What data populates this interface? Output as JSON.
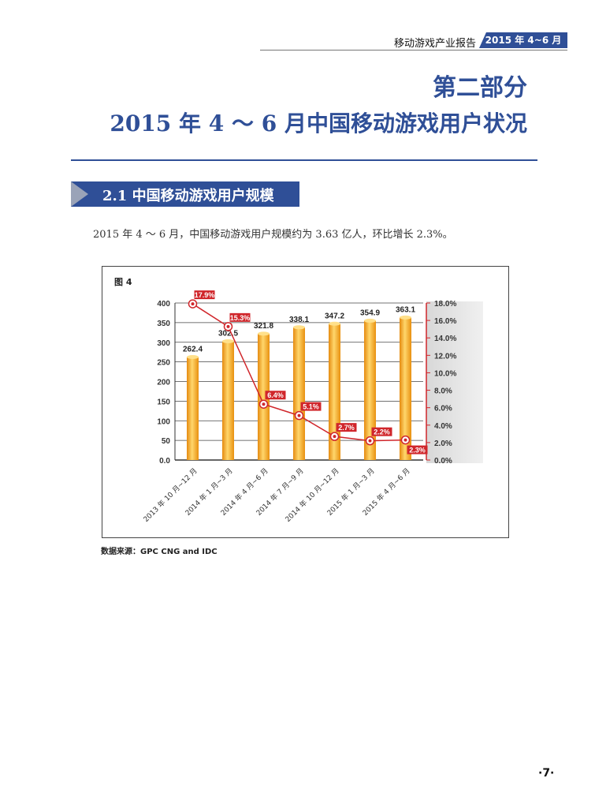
{
  "header": {
    "report_title": "移动游戏产业报告",
    "period_tag": "2015 年 4~6 月"
  },
  "section": {
    "title": "第二部分",
    "subtitle": "2015 年 4 ～ 6 月中国移动游戏用户状况"
  },
  "subsection": {
    "title": "2.1 中国移动游戏用户规模"
  },
  "paragraph": "2015 年 4 ～ 6 月，中国移动游戏用户规模约为 3.63 亿人，环比增长 2.3%。",
  "figure": {
    "label": "图 4",
    "source": "数据来源：GPC CNG and IDC"
  },
  "chart_data": {
    "type": "bar",
    "categories": [
      "2013 年 10 月~12 月",
      "2014 年 1 月~3 月",
      "2014 年 4 月~6 月",
      "2014 年 7 月~9 月",
      "2014 年 10 月~12 月",
      "2015 年 1 月~3 月",
      "2015 年 4 月~6 月"
    ],
    "series": [
      {
        "values": [
          262.4,
          302.5,
          321.8,
          338.1,
          347.2,
          354.9,
          363.1
        ],
        "axis": "left",
        "type": "bar",
        "color": "#f5a623"
      },
      {
        "values": [
          17.9,
          15.3,
          6.4,
          5.1,
          2.7,
          2.2,
          2.3
        ],
        "axis": "right",
        "type": "line",
        "color": "#d0262b"
      }
    ],
    "bar_labels": [
      "262.4",
      "302.5",
      "321.8",
      "338.1",
      "347.2",
      "354.9",
      "363.1"
    ],
    "line_labels": [
      "17.9%",
      "15.3%",
      "6.4%",
      "5.1%",
      "2.7%",
      "2.2%",
      "2.3%"
    ],
    "ylim": [
      0,
      400
    ],
    "yticks": [
      "0.0",
      "50",
      "100",
      "150",
      "200",
      "250",
      "300",
      "350",
      "400"
    ],
    "y2lim": [
      0,
      18
    ],
    "y2ticks": [
      "0.0%",
      "2.0%",
      "4.0%",
      "6.0%",
      "8.0%",
      "10.0%",
      "12.0%",
      "14.0%",
      "16.0%",
      "18.0%"
    ],
    "grid": true
  },
  "page_number": "·7·"
}
